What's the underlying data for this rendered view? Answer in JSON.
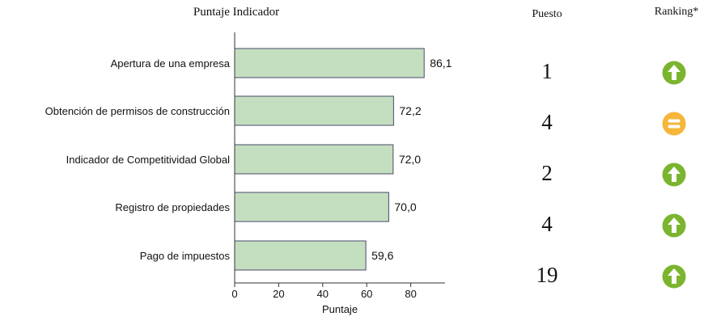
{
  "chart_title": "Puntaje Indicador",
  "table_headers": {
    "puesto": "Puesto",
    "ranking": "Ranking*"
  },
  "colors": {
    "bar_fill": "#c4dfc0",
    "bar_stroke": "#4a4a6a",
    "axis": "#333333",
    "arrow_up_green": "#7bb52f",
    "equal_yellow": "#f6b63a"
  },
  "chart_data": {
    "type": "bar",
    "orientation": "horizontal",
    "title": "Puntaje Indicador",
    "xlabel": "Puntaje",
    "ylabel": "",
    "xlim": [
      0,
      95
    ],
    "xticks": [
      0,
      20,
      40,
      60,
      80
    ],
    "grid": false,
    "categories": [
      "Apertura de una empresa",
      "Obtención de permisos de construcción",
      "Indicador de Competitividad Global",
      "Registro de propiedades",
      "Pago de impuestos"
    ],
    "values": [
      86.1,
      72.2,
      72.0,
      70.0,
      59.6
    ],
    "value_labels": [
      "86,1",
      "72,2",
      "72,0",
      "70,0",
      "59,6"
    ]
  },
  "rows": [
    {
      "puesto": "1",
      "ranking_icon": "arrow-up-icon"
    },
    {
      "puesto": "4",
      "ranking_icon": "equal-icon"
    },
    {
      "puesto": "2",
      "ranking_icon": "arrow-up-icon"
    },
    {
      "puesto": "4",
      "ranking_icon": "arrow-up-icon"
    },
    {
      "puesto": "19",
      "ranking_icon": "arrow-up-icon"
    }
  ]
}
